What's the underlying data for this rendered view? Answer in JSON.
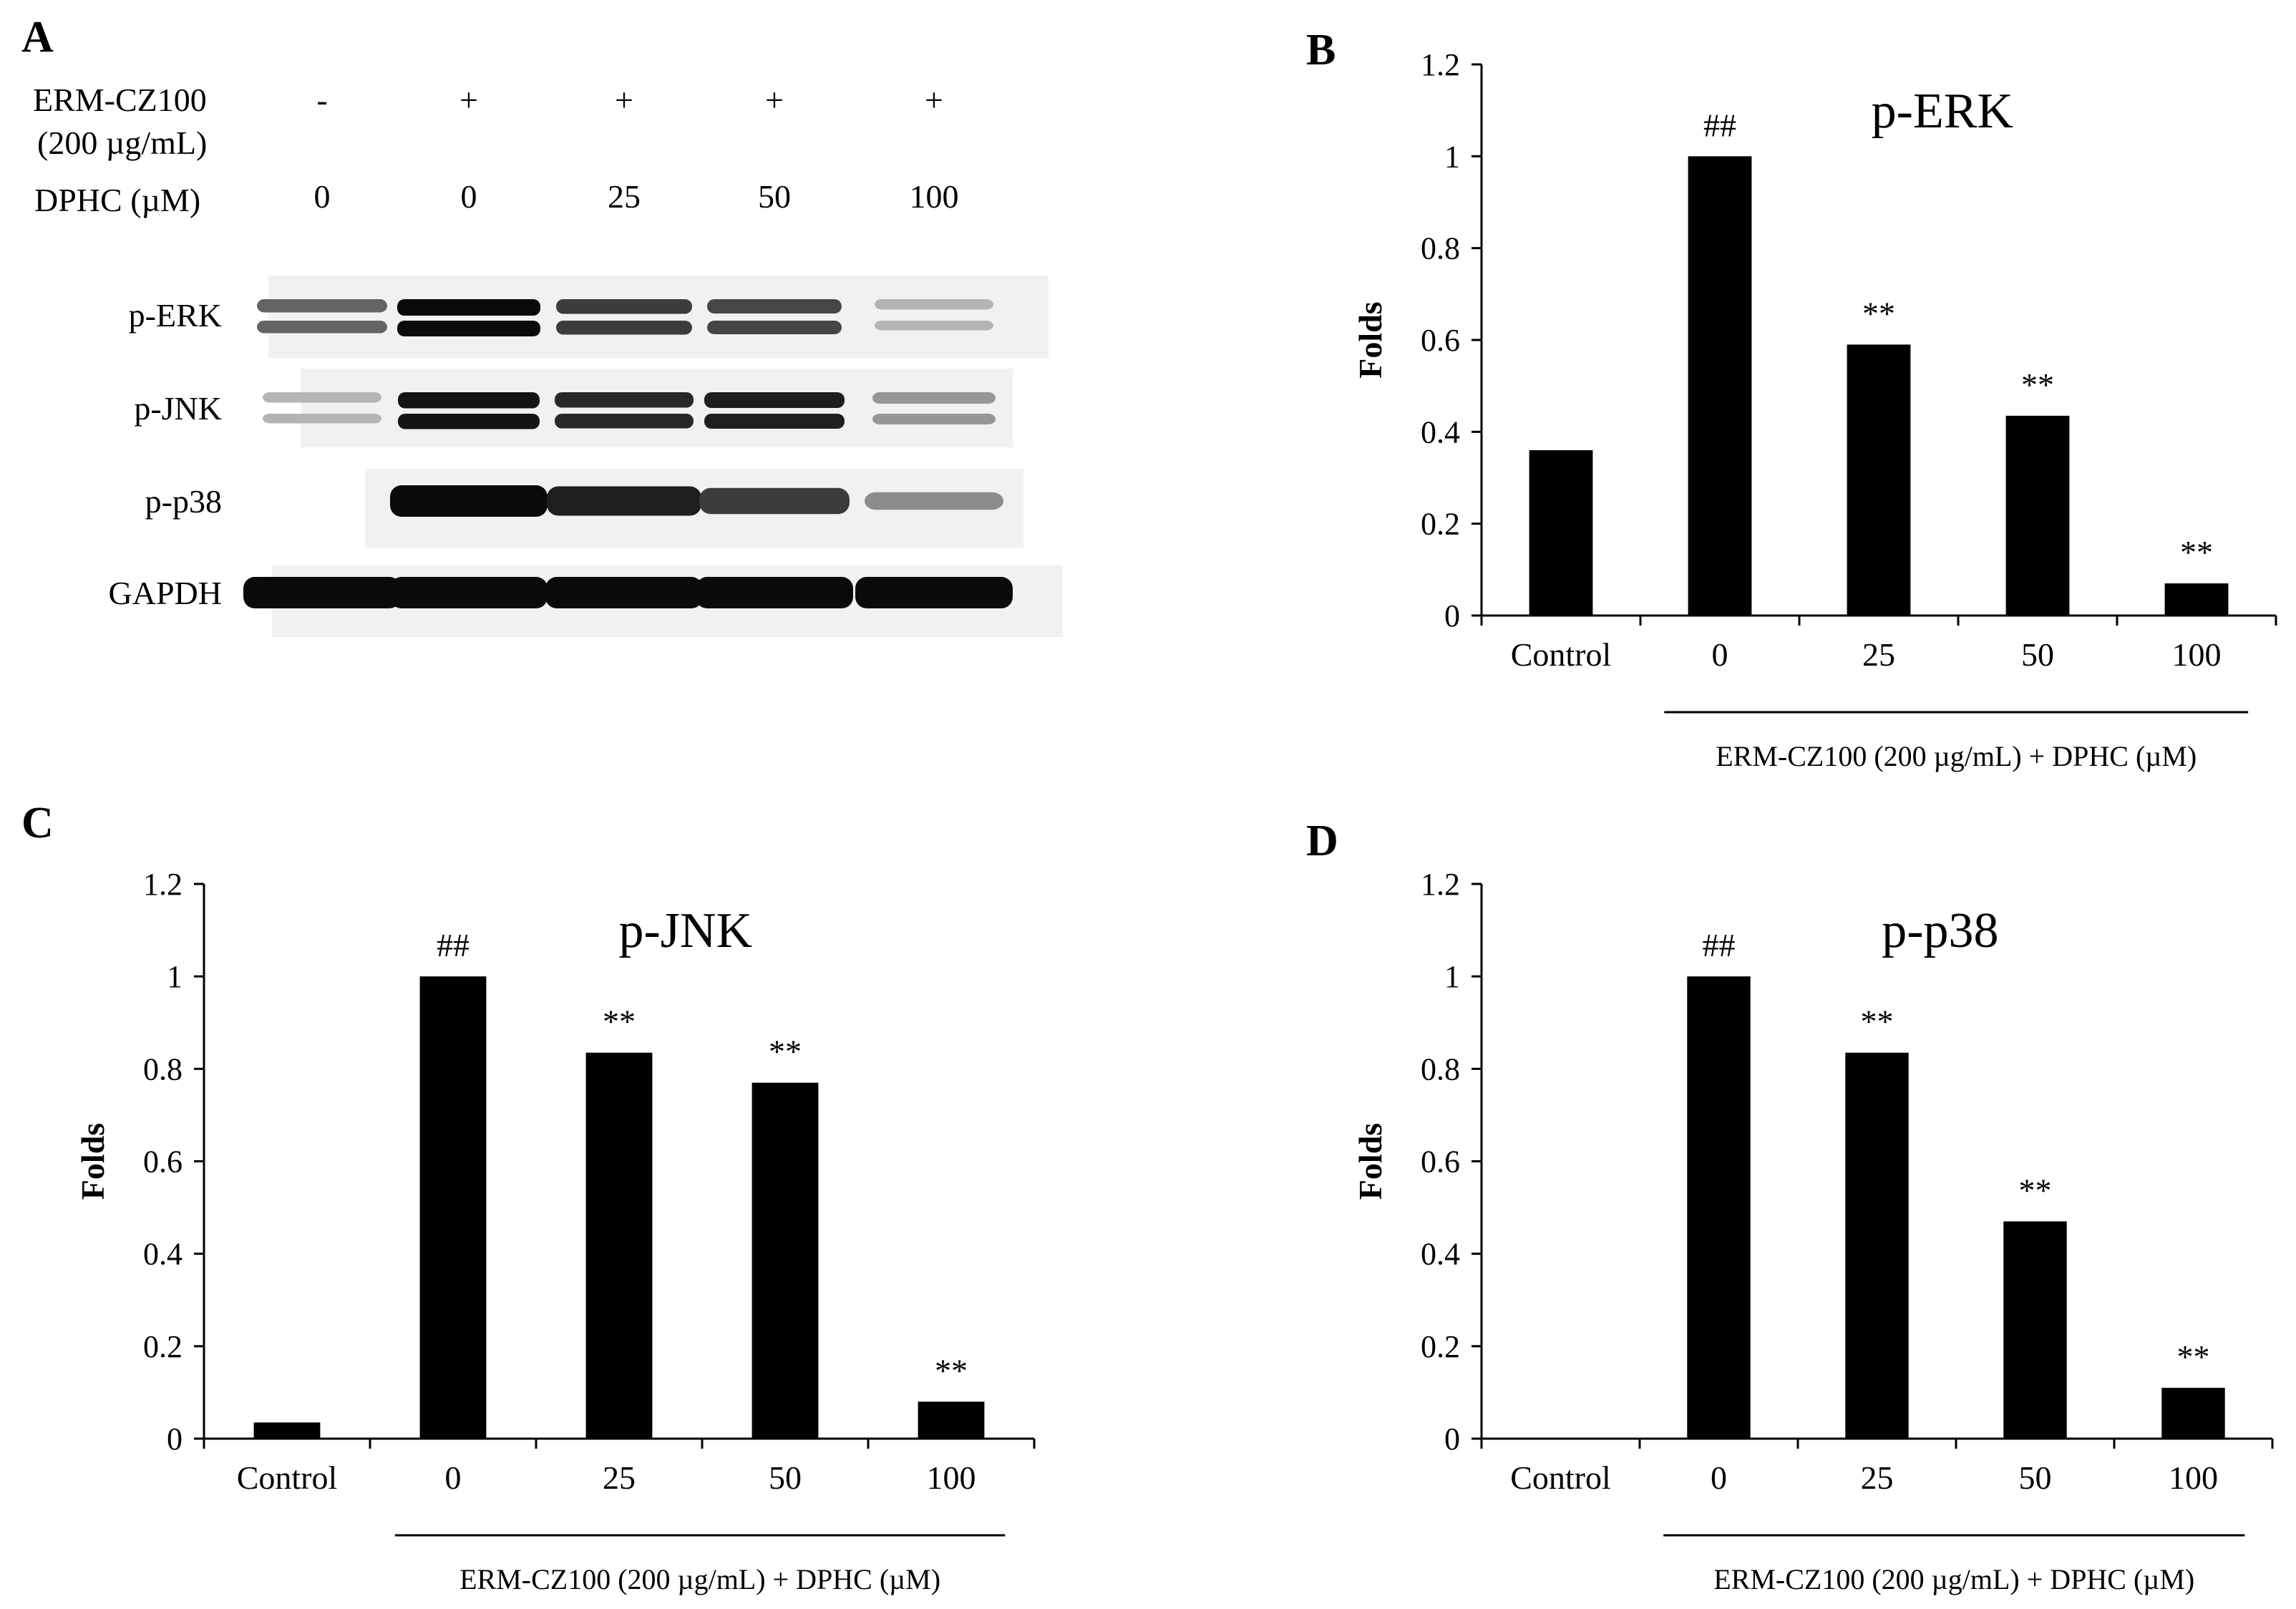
{
  "panel_a": {
    "label": "A",
    "row_labels": {
      "erm_line1": "ERM-CZ100",
      "erm_line2": "(200 µg/mL)",
      "dphc": "DPHC (µM)"
    },
    "lanes": [
      {
        "erm": "-",
        "dphc": "0"
      },
      {
        "erm": "+",
        "dphc": "0"
      },
      {
        "erm": "+",
        "dphc": "25"
      },
      {
        "erm": "+",
        "dphc": "50"
      },
      {
        "erm": "+",
        "dphc": "100"
      }
    ],
    "blots": [
      {
        "label": "p-ERK",
        "intensity": [
          0.55,
          1.0,
          0.75,
          0.7,
          0.15
        ],
        "bands": 2
      },
      {
        "label": "p-JNK",
        "intensity": [
          0.15,
          0.95,
          0.85,
          0.9,
          0.3
        ],
        "bands": 2
      },
      {
        "label": "p-p38",
        "intensity": [
          0.0,
          1.0,
          0.9,
          0.75,
          0.35
        ],
        "bands": 1
      },
      {
        "label": "GAPDH",
        "intensity": [
          1.0,
          1.0,
          1.0,
          1.0,
          1.0
        ],
        "bands": 1
      }
    ]
  },
  "chart_data": [
    {
      "panel": "B",
      "type": "bar",
      "title": "p-ERK",
      "ylabel": "Folds",
      "ylim": [
        0,
        1.2
      ],
      "yticks": [
        "0",
        "0.2",
        "0.4",
        "0.6",
        "0.8",
        "1",
        "1.2"
      ],
      "categories": [
        "Control",
        "0",
        "25",
        "50",
        "100"
      ],
      "values": [
        0.36,
        1.0,
        0.59,
        0.435,
        0.07
      ],
      "annotations": [
        "",
        "##",
        "**",
        "**",
        "**"
      ],
      "group_label": "ERM-CZ100 (200 µg/mL) + DPHC (µM)"
    },
    {
      "panel": "C",
      "type": "bar",
      "title": "p-JNK",
      "ylabel": "Folds",
      "ylim": [
        0,
        1.2
      ],
      "yticks": [
        "0",
        "0.2",
        "0.4",
        "0.6",
        "0.8",
        "1",
        "1.2"
      ],
      "categories": [
        "Control",
        "0",
        "25",
        "50",
        "100"
      ],
      "values": [
        0.035,
        1.0,
        0.835,
        0.77,
        0.08
      ],
      "annotations": [
        "",
        "##",
        "**",
        "**",
        "**"
      ],
      "group_label": "ERM-CZ100 (200 µg/mL) + DPHC (µM)"
    },
    {
      "panel": "D",
      "type": "bar",
      "title": "p-p38",
      "ylabel": "Folds",
      "ylim": [
        0,
        1.2
      ],
      "yticks": [
        "0",
        "0.2",
        "0.4",
        "0.6",
        "0.8",
        "1",
        "1.2"
      ],
      "categories": [
        "Control",
        "0",
        "25",
        "50",
        "100"
      ],
      "values": [
        0.0,
        1.0,
        0.835,
        0.47,
        0.11
      ],
      "annotations": [
        "",
        "##",
        "**",
        "**",
        "**"
      ],
      "group_label": "ERM-CZ100 (200 µg/mL) + DPHC (µM)"
    }
  ]
}
